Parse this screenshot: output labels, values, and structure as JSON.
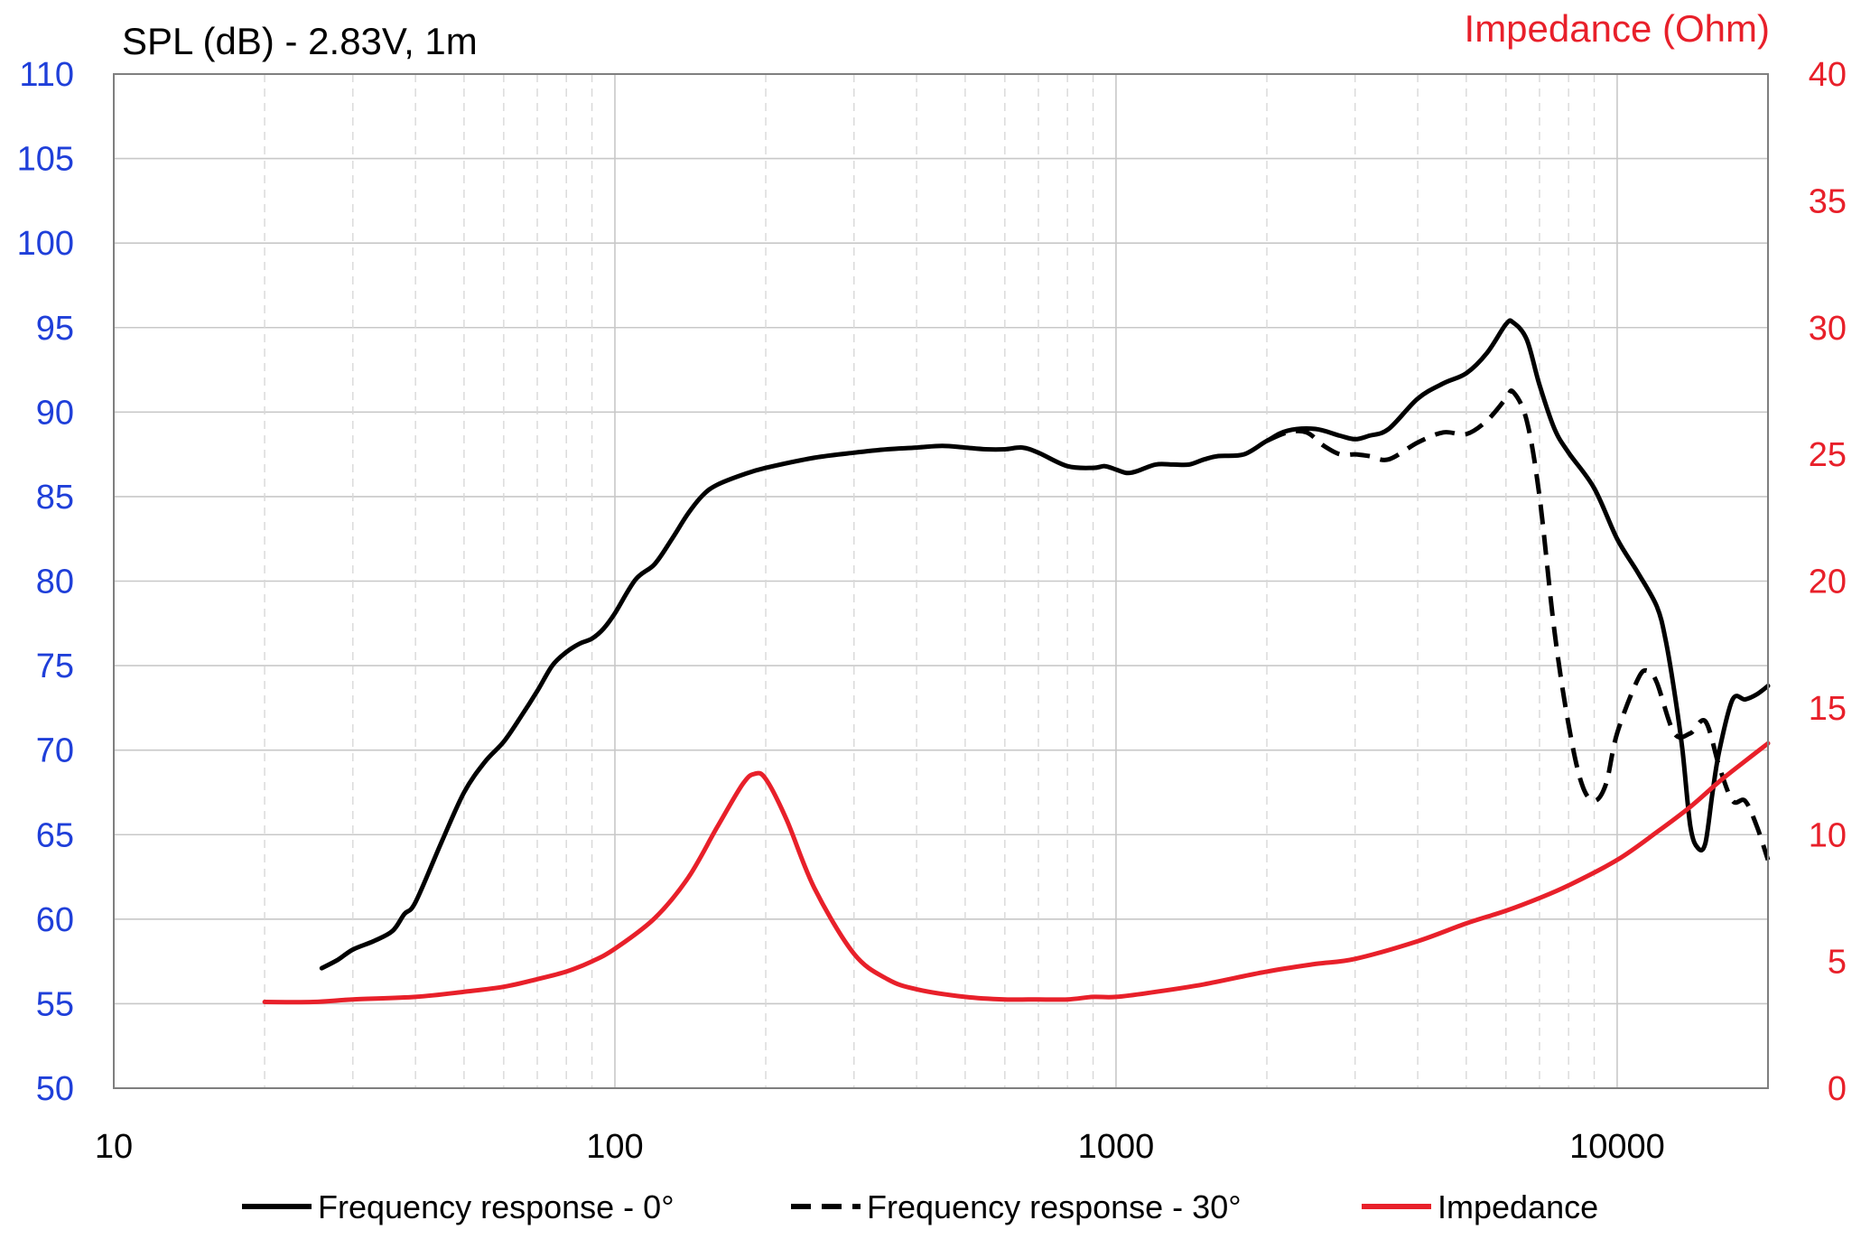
{
  "chart_data": {
    "type": "line",
    "title_left": "SPL (dB) - 2.83V, 1m",
    "title_right": "Impedance (Ohm)",
    "xlabel": "",
    "x_scale": "log",
    "xlim": [
      10,
      20000
    ],
    "x_ticks": [
      10,
      100,
      1000,
      10000
    ],
    "x_tick_labels": [
      "10",
      "100",
      "1000",
      "10000"
    ],
    "ylim_left": [
      50,
      110
    ],
    "y_ticks_left": [
      "50",
      "55",
      "60",
      "65",
      "70",
      "75",
      "80",
      "85",
      "90",
      "95",
      "100",
      "105",
      "110"
    ],
    "ylim_right": [
      0,
      40
    ],
    "y_ticks_right": [
      "0",
      "5",
      "10",
      "15",
      "20",
      "25",
      "30",
      "35",
      "40"
    ],
    "grid": true,
    "legend_position": "bottom",
    "colors": {
      "left_axis": "#1f3fd9",
      "right_axis": "#e8202a",
      "spl": "#000000",
      "impedance": "#e8202a",
      "grid_major": "#c8c8c8",
      "grid_minor": "#d8d8d8"
    },
    "series": [
      {
        "name": "Frequency response - 0°",
        "axis": "left",
        "style": "solid",
        "color": "#000000",
        "points": [
          [
            26,
            57.1
          ],
          [
            28,
            57.6
          ],
          [
            30,
            58.2
          ],
          [
            33,
            58.7
          ],
          [
            36,
            59.3
          ],
          [
            38,
            60.3
          ],
          [
            40,
            61.0
          ],
          [
            45,
            64.5
          ],
          [
            50,
            67.5
          ],
          [
            55,
            69.3
          ],
          [
            60,
            70.5
          ],
          [
            65,
            72.0
          ],
          [
            70,
            73.5
          ],
          [
            75,
            75.0
          ],
          [
            80,
            75.8
          ],
          [
            85,
            76.3
          ],
          [
            90,
            76.6
          ],
          [
            95,
            77.2
          ],
          [
            100,
            78.1
          ],
          [
            110,
            80.1
          ],
          [
            120,
            81.0
          ],
          [
            130,
            82.5
          ],
          [
            140,
            84.0
          ],
          [
            150,
            85.1
          ],
          [
            160,
            85.7
          ],
          [
            180,
            86.3
          ],
          [
            200,
            86.7
          ],
          [
            250,
            87.3
          ],
          [
            300,
            87.6
          ],
          [
            350,
            87.8
          ],
          [
            400,
            87.9
          ],
          [
            450,
            88.0
          ],
          [
            500,
            87.9
          ],
          [
            550,
            87.8
          ],
          [
            600,
            87.8
          ],
          [
            650,
            87.9
          ],
          [
            700,
            87.6
          ],
          [
            800,
            86.8
          ],
          [
            900,
            86.7
          ],
          [
            950,
            86.8
          ],
          [
            1000,
            86.6
          ],
          [
            1050,
            86.4
          ],
          [
            1100,
            86.5
          ],
          [
            1200,
            86.9
          ],
          [
            1300,
            86.9
          ],
          [
            1400,
            86.9
          ],
          [
            1500,
            87.2
          ],
          [
            1600,
            87.4
          ],
          [
            1800,
            87.5
          ],
          [
            2000,
            88.3
          ],
          [
            2200,
            88.9
          ],
          [
            2500,
            89.0
          ],
          [
            2800,
            88.6
          ],
          [
            3000,
            88.4
          ],
          [
            3200,
            88.6
          ],
          [
            3500,
            89.0
          ],
          [
            4000,
            90.8
          ],
          [
            4500,
            91.7
          ],
          [
            5000,
            92.3
          ],
          [
            5500,
            93.5
          ],
          [
            6000,
            95.2
          ],
          [
            6200,
            95.3
          ],
          [
            6600,
            94.3
          ],
          [
            7000,
            91.6
          ],
          [
            7500,
            89.0
          ],
          [
            8000,
            87.6
          ],
          [
            9000,
            85.5
          ],
          [
            10000,
            82.5
          ],
          [
            11000,
            80.5
          ],
          [
            12000,
            78.5
          ],
          [
            12500,
            76.5
          ],
          [
            13000,
            73.5
          ],
          [
            13500,
            70.0
          ],
          [
            14000,
            65.5
          ],
          [
            14500,
            64.2
          ],
          [
            15000,
            64.5
          ],
          [
            15500,
            67.5
          ],
          [
            16000,
            70.0
          ],
          [
            17000,
            73.0
          ],
          [
            18000,
            73.0
          ],
          [
            19000,
            73.3
          ],
          [
            20000,
            73.8
          ]
        ]
      },
      {
        "name": "Frequency response - 30°",
        "axis": "left",
        "style": "dashed",
        "color": "#000000",
        "points": [
          [
            2000,
            88.3
          ],
          [
            2200,
            88.8
          ],
          [
            2400,
            88.8
          ],
          [
            2600,
            88.0
          ],
          [
            2800,
            87.5
          ],
          [
            3000,
            87.5
          ],
          [
            3200,
            87.4
          ],
          [
            3500,
            87.2
          ],
          [
            4000,
            88.2
          ],
          [
            4500,
            88.8
          ],
          [
            5000,
            88.7
          ],
          [
            5500,
            89.5
          ],
          [
            6000,
            90.8
          ],
          [
            6200,
            91.2
          ],
          [
            6600,
            89.5
          ],
          [
            7000,
            85.0
          ],
          [
            7500,
            77.0
          ],
          [
            8000,
            71.5
          ],
          [
            8500,
            68.0
          ],
          [
            9000,
            67.0
          ],
          [
            9500,
            68.0
          ],
          [
            10000,
            71.0
          ],
          [
            11000,
            74.2
          ],
          [
            11500,
            74.7
          ],
          [
            12000,
            74.0
          ],
          [
            13000,
            71.0
          ],
          [
            14000,
            71.0
          ],
          [
            15000,
            71.7
          ],
          [
            16000,
            69.0
          ],
          [
            17000,
            67.0
          ],
          [
            18000,
            67.0
          ],
          [
            19000,
            65.5
          ],
          [
            20000,
            63.5
          ]
        ]
      },
      {
        "name": "Impedance",
        "axis": "right",
        "style": "solid",
        "color": "#e8202a",
        "points": [
          [
            20,
            3.4
          ],
          [
            25,
            3.4
          ],
          [
            30,
            3.5
          ],
          [
            40,
            3.6
          ],
          [
            50,
            3.8
          ],
          [
            60,
            4.0
          ],
          [
            70,
            4.3
          ],
          [
            80,
            4.6
          ],
          [
            90,
            5.0
          ],
          [
            100,
            5.5
          ],
          [
            120,
            6.7
          ],
          [
            140,
            8.3
          ],
          [
            160,
            10.3
          ],
          [
            180,
            12.0
          ],
          [
            190,
            12.4
          ],
          [
            200,
            12.2
          ],
          [
            220,
            10.6
          ],
          [
            250,
            7.9
          ],
          [
            300,
            5.3
          ],
          [
            350,
            4.3
          ],
          [
            400,
            3.9
          ],
          [
            500,
            3.6
          ],
          [
            600,
            3.5
          ],
          [
            700,
            3.5
          ],
          [
            800,
            3.5
          ],
          [
            900,
            3.6
          ],
          [
            1000,
            3.6
          ],
          [
            1200,
            3.8
          ],
          [
            1500,
            4.1
          ],
          [
            2000,
            4.6
          ],
          [
            2500,
            4.9
          ],
          [
            3000,
            5.1
          ],
          [
            4000,
            5.8
          ],
          [
            5000,
            6.5
          ],
          [
            6000,
            7.0
          ],
          [
            7000,
            7.5
          ],
          [
            8000,
            8.0
          ],
          [
            10000,
            9.0
          ],
          [
            12000,
            10.1
          ],
          [
            14000,
            11.1
          ],
          [
            16000,
            12.1
          ],
          [
            18000,
            12.9
          ],
          [
            20000,
            13.6
          ]
        ]
      }
    ]
  }
}
